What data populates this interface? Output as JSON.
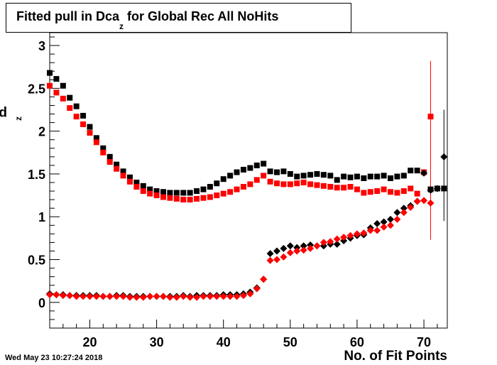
{
  "title": {
    "main": "Fitted pull in Dca",
    "sub": "z",
    "rest": " for Global Rec All NoHits"
  },
  "timestamp": "Wed May 23 10:27:24 2018",
  "chart_data": {
    "type": "scatter",
    "xlabel": "No. of Fit Points",
    "ylabel_main": "pull in Dca",
    "ylabel_sub": "z",
    "xlim": [
      14,
      73.5
    ],
    "ylim": [
      -0.3,
      3.15
    ],
    "xticks": [
      20,
      30,
      40,
      50,
      60,
      70
    ],
    "yticks": [
      0,
      0.5,
      1,
      1.5,
      2,
      2.5,
      3
    ],
    "ytick_labels": [
      "0",
      "0.5",
      "1",
      "1.5",
      "2",
      "2.5",
      "3"
    ],
    "colors": {
      "black": "#000000",
      "red": "#ff0000"
    },
    "series": [
      {
        "marker": "square",
        "color": "#000000",
        "x": [
          14,
          15,
          16,
          17,
          18,
          19,
          20,
          21,
          22,
          23,
          24,
          25,
          26,
          27,
          28,
          29,
          30,
          31,
          32,
          33,
          34,
          35,
          36,
          37,
          38,
          39,
          40,
          41,
          42,
          43,
          44,
          45,
          46,
          47,
          48,
          49,
          50,
          51,
          52,
          53,
          54,
          55,
          56,
          57,
          58,
          59,
          60,
          61,
          62,
          63,
          64,
          65,
          66,
          67,
          68,
          69,
          70,
          71,
          72,
          73
        ],
        "y": [
          2.68,
          2.61,
          2.53,
          2.39,
          2.29,
          2.18,
          2.05,
          1.92,
          1.8,
          1.7,
          1.61,
          1.53,
          1.46,
          1.4,
          1.36,
          1.32,
          1.3,
          1.29,
          1.28,
          1.28,
          1.28,
          1.28,
          1.3,
          1.32,
          1.35,
          1.39,
          1.44,
          1.48,
          1.52,
          1.55,
          1.57,
          1.6,
          1.62,
          1.53,
          1.52,
          1.53,
          1.5,
          1.47,
          1.48,
          1.49,
          1.5,
          1.49,
          1.48,
          1.43,
          1.47,
          1.46,
          1.47,
          1.45,
          1.47,
          1.47,
          1.48,
          1.45,
          1.47,
          1.48,
          1.54,
          1.54,
          1.52,
          1.32,
          1.33,
          1.33
        ]
      },
      {
        "marker": "square",
        "color": "#ff0000",
        "x": [
          14,
          15,
          16,
          17,
          18,
          19,
          20,
          21,
          22,
          23,
          24,
          25,
          26,
          27,
          28,
          29,
          30,
          31,
          32,
          33,
          34,
          35,
          36,
          37,
          38,
          39,
          40,
          41,
          42,
          43,
          44,
          45,
          46,
          47,
          48,
          49,
          50,
          51,
          52,
          53,
          54,
          55,
          56,
          57,
          58,
          59,
          60,
          61,
          62,
          63,
          64,
          65,
          66,
          67,
          68,
          69,
          70,
          71
        ],
        "y": [
          2.53,
          2.45,
          2.38,
          2.27,
          2.17,
          2.08,
          1.98,
          1.87,
          1.75,
          1.64,
          1.56,
          1.48,
          1.41,
          1.35,
          1.3,
          1.27,
          1.25,
          1.23,
          1.22,
          1.21,
          1.2,
          1.2,
          1.21,
          1.22,
          1.23,
          1.25,
          1.27,
          1.29,
          1.32,
          1.35,
          1.38,
          1.43,
          1.48,
          1.41,
          1.39,
          1.38,
          1.38,
          1.39,
          1.4,
          1.38,
          1.37,
          1.36,
          1.35,
          1.34,
          1.34,
          1.35,
          1.32,
          1.28,
          1.29,
          1.3,
          1.32,
          1.29,
          1.28,
          1.3,
          1.33,
          1.27,
          1.52,
          2.17
        ],
        "err_x": [
          71
        ],
        "err_low": [
          0.73
        ],
        "err_high": [
          2.82
        ]
      },
      {
        "marker": "diamond",
        "color": "#000000",
        "x": [
          14,
          15,
          16,
          17,
          18,
          19,
          20,
          21,
          22,
          23,
          24,
          25,
          26,
          27,
          28,
          29,
          30,
          31,
          32,
          33,
          34,
          35,
          36,
          37,
          38,
          39,
          40,
          41,
          42,
          43,
          44,
          45,
          46,
          47,
          48,
          49,
          50,
          51,
          52,
          53,
          54,
          55,
          56,
          57,
          58,
          59,
          60,
          61,
          62,
          63,
          64,
          65,
          66,
          67,
          68,
          69,
          70,
          71,
          72,
          73
        ],
        "y": [
          0.1,
          0.09,
          0.09,
          0.08,
          0.08,
          0.08,
          0.08,
          0.08,
          0.07,
          0.07,
          0.08,
          0.08,
          0.07,
          0.07,
          0.07,
          0.07,
          0.07,
          0.07,
          0.07,
          0.07,
          0.08,
          0.07,
          0.08,
          0.08,
          0.08,
          0.08,
          0.09,
          0.09,
          0.09,
          0.1,
          0.12,
          0.17,
          0.27,
          0.57,
          0.6,
          0.63,
          0.66,
          0.64,
          0.66,
          0.67,
          0.66,
          0.66,
          0.68,
          0.68,
          0.72,
          0.75,
          0.78,
          0.79,
          0.87,
          0.92,
          0.94,
          0.97,
          1.05,
          1.1,
          1.13,
          1.18,
          1.51,
          1.31,
          1.33,
          1.7
        ],
        "err_x": [
          73
        ],
        "err_low": [
          0.95
        ],
        "err_high": [
          2.25
        ]
      },
      {
        "marker": "diamond",
        "color": "#ff0000",
        "x": [
          14,
          15,
          16,
          17,
          18,
          19,
          20,
          21,
          22,
          23,
          24,
          25,
          26,
          27,
          28,
          29,
          30,
          31,
          32,
          33,
          34,
          35,
          36,
          37,
          38,
          39,
          40,
          41,
          42,
          43,
          44,
          45,
          46,
          47,
          48,
          49,
          50,
          51,
          52,
          53,
          54,
          55,
          56,
          57,
          58,
          59,
          60,
          61,
          62,
          63,
          64,
          65,
          66,
          67,
          68,
          69,
          70,
          71
        ],
        "y": [
          0.09,
          0.09,
          0.08,
          0.08,
          0.07,
          0.07,
          0.07,
          0.07,
          0.07,
          0.07,
          0.07,
          0.07,
          0.06,
          0.06,
          0.06,
          0.07,
          0.07,
          0.07,
          0.06,
          0.06,
          0.07,
          0.06,
          0.06,
          0.07,
          0.07,
          0.07,
          0.07,
          0.07,
          0.07,
          0.08,
          0.1,
          0.16,
          0.27,
          0.49,
          0.5,
          0.53,
          0.58,
          0.6,
          0.61,
          0.63,
          0.66,
          0.7,
          0.71,
          0.74,
          0.76,
          0.78,
          0.8,
          0.81,
          0.84,
          0.84,
          0.88,
          0.9,
          0.97,
          1.05,
          1.11,
          1.18,
          1.19,
          1.16
        ]
      }
    ]
  }
}
